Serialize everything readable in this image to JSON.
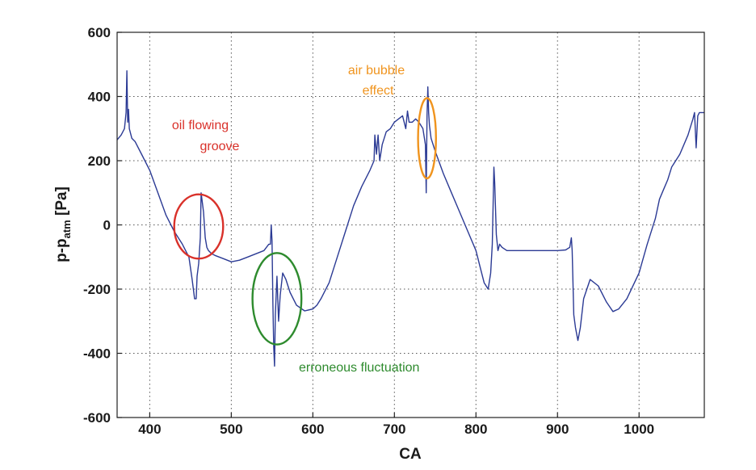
{
  "chart_data": {
    "type": "line",
    "title": "",
    "xlabel": "CA",
    "ylabel_main": "p-p",
    "ylabel_sub": "atm",
    "ylabel_unit": " [Pa]",
    "xlim": [
      360,
      1080
    ],
    "ylim": [
      -600,
      600
    ],
    "xticks": [
      400,
      500,
      600,
      700,
      800,
      900,
      1000
    ],
    "yticks": [
      -600,
      -400,
      -200,
      0,
      200,
      400,
      600
    ],
    "grid": true,
    "line_color": "#2b3a94",
    "series": [
      {
        "x": [
          360,
          365,
          369,
          371,
          372,
          373,
          374,
          375,
          378,
          382,
          390,
          400,
          410,
          420,
          430,
          440,
          448,
          452,
          455,
          457,
          458,
          460,
          462,
          463,
          464,
          466,
          468,
          470,
          472,
          476,
          480,
          490,
          500,
          510,
          520,
          530,
          540,
          546,
          548,
          549,
          550,
          551,
          552,
          553,
          554,
          556,
          558,
          560,
          563,
          567,
          572,
          580,
          590,
          600,
          605,
          610,
          620,
          630,
          640,
          650,
          660,
          670,
          675,
          676,
          678,
          680,
          682,
          685,
          690,
          695,
          700,
          705,
          710,
          714,
          716,
          718,
          722,
          726,
          730,
          735,
          738,
          739,
          740,
          741,
          742,
          743,
          745,
          750,
          760,
          770,
          780,
          790,
          800,
          805,
          810,
          815,
          818,
          820,
          822,
          823,
          825,
          827,
          829,
          832,
          838,
          845,
          860,
          880,
          900,
          910,
          915,
          917,
          918,
          919,
          920,
          922,
          925,
          928,
          932,
          940,
          950,
          960,
          968,
          975,
          985,
          1000,
          1010,
          1020,
          1025,
          1030,
          1035,
          1040,
          1050,
          1060,
          1066,
          1068,
          1070,
          1072,
          1074,
          1076,
          1080
        ],
        "y": [
          265,
          280,
          300,
          350,
          480,
          320,
          360,
          300,
          270,
          260,
          220,
          170,
          100,
          30,
          -20,
          -60,
          -100,
          -170,
          -230,
          -230,
          -160,
          -120,
          -40,
          100,
          80,
          40,
          -40,
          -70,
          -80,
          -90,
          -95,
          -105,
          -115,
          -110,
          -100,
          -90,
          -80,
          -60,
          -60,
          0,
          -50,
          -250,
          -380,
          -440,
          -280,
          -160,
          -300,
          -220,
          -150,
          -170,
          -210,
          -250,
          -268,
          -262,
          -250,
          -230,
          -180,
          -100,
          -20,
          60,
          120,
          170,
          200,
          280,
          220,
          280,
          200,
          250,
          290,
          300,
          320,
          330,
          340,
          300,
          355,
          320,
          320,
          330,
          320,
          300,
          250,
          100,
          340,
          430,
          350,
          310,
          270,
          230,
          160,
          100,
          40,
          -20,
          -80,
          -130,
          -180,
          -200,
          -150,
          -60,
          180,
          130,
          -30,
          -80,
          -60,
          -70,
          -80,
          -80,
          -80,
          -80,
          -80,
          -78,
          -70,
          -40,
          -80,
          -180,
          -280,
          -320,
          -360,
          -320,
          -230,
          -170,
          -190,
          -240,
          -270,
          -262,
          -230,
          -150,
          -60,
          20,
          80,
          110,
          140,
          180,
          220,
          280,
          330,
          350,
          240,
          340,
          350,
          350,
          350
        ]
      }
    ],
    "annotations": [
      {
        "text_lines": [
          "oil flowing",
          "groove"
        ],
        "color": "#d9312a",
        "x": 460,
        "y": -5,
        "x_span": 60,
        "y_height": 200
      },
      {
        "text_lines": [
          "erroneous fluctuation"
        ],
        "color": "#2e8b2e",
        "x": 556,
        "y": -230,
        "x_span": 60,
        "y_height": 285
      },
      {
        "text_lines": [
          "air bubble",
          "effect"
        ],
        "color": "#f0941e",
        "x": 740,
        "y": 270,
        "x_span": 22,
        "y_height": 250
      }
    ]
  }
}
